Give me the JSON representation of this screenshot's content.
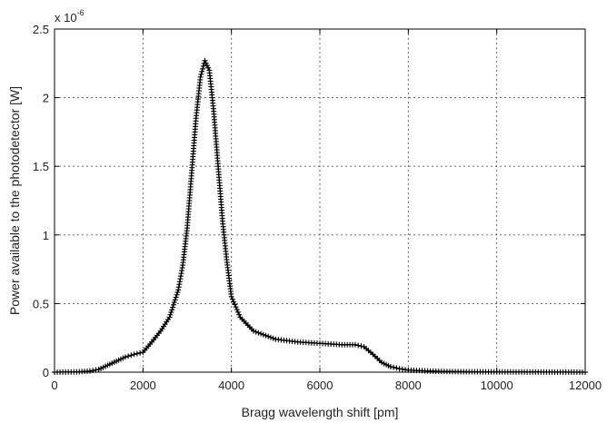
{
  "chart_data": {
    "type": "line",
    "xlabel": "Bragg wavelength shift [pm]",
    "ylabel": "Power available to the photodetector  [W]",
    "y_multiplier": {
      "base": "x 10",
      "exponent": "-6"
    },
    "xlim": [
      0,
      12000
    ],
    "ylim": [
      0,
      2.5
    ],
    "x_ticks": [
      0,
      2000,
      4000,
      6000,
      8000,
      10000,
      12000
    ],
    "x_tick_labels": [
      "0",
      "2000",
      "4000",
      "6000",
      "8000",
      "10000",
      "12000"
    ],
    "y_ticks": [
      0,
      0.5,
      1,
      1.5,
      2,
      2.5
    ],
    "y_tick_labels": [
      "0",
      "0.5",
      "1",
      "1.5",
      "2",
      "2.5"
    ],
    "grid": true,
    "marker": "plus",
    "color": "#000000",
    "series": [
      {
        "x": [
          0,
          500,
          800,
          1000,
          1200,
          1400,
          1600,
          1800,
          2000,
          2200,
          2400,
          2600,
          2800,
          2900,
          3000,
          3100,
          3200,
          3300,
          3400,
          3500,
          3600,
          3700,
          3800,
          3900,
          4000,
          4200,
          4500,
          5000,
          5500,
          6000,
          6500,
          6800,
          7000,
          7200,
          7400,
          7600,
          7800,
          8000,
          8500,
          9000,
          10000,
          11000,
          12000
        ],
        "y": [
          0.0,
          0.002,
          0.008,
          0.02,
          0.05,
          0.08,
          0.11,
          0.13,
          0.145,
          0.22,
          0.3,
          0.4,
          0.6,
          0.78,
          1.05,
          1.45,
          1.85,
          2.15,
          2.27,
          2.2,
          1.9,
          1.5,
          1.1,
          0.8,
          0.55,
          0.4,
          0.3,
          0.24,
          0.22,
          0.21,
          0.2,
          0.2,
          0.185,
          0.13,
          0.07,
          0.04,
          0.025,
          0.015,
          0.008,
          0.004,
          0.002,
          0.001,
          0.0
        ]
      }
    ]
  }
}
